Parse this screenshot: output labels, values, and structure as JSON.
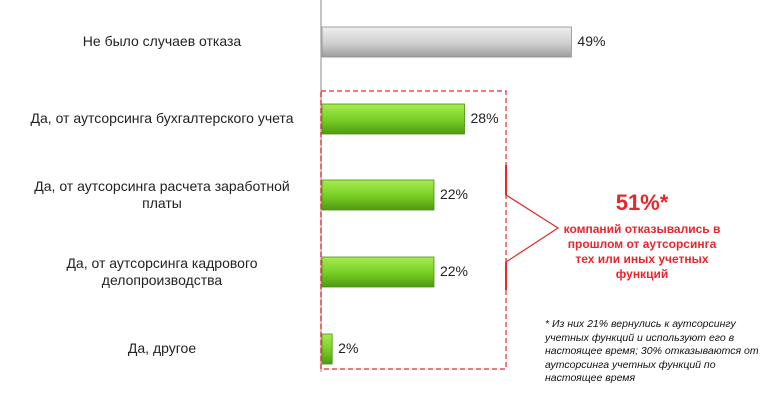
{
  "chart_data": {
    "type": "bar",
    "orientation": "horizontal",
    "categories": [
      "Не было случаев отказа",
      "Да, от аутсорсинга бухгалтерского  учета",
      "Да, от аутсорсинга расчета заработной платы",
      "Да, от аутсорсинга кадрового делопроизводства",
      "Да, другое"
    ],
    "values": [
      49,
      28,
      22,
      22,
      2
    ],
    "value_labels": [
      "49%",
      "28%",
      "22%",
      "22%",
      "2%"
    ],
    "bar_colors": [
      "#c8c8c8",
      "#7ad12a",
      "#7ad12a",
      "#7ad12a",
      "#7ad12a"
    ],
    "xlim": [
      0,
      100
    ],
    "grid": false
  },
  "callout": {
    "percent": "51%*",
    "text": "компаний отказывались в прошлом от аутсорсинга тех или иных учетных функций",
    "color": "#e8262b"
  },
  "footnote": "* Из них 21% вернулись к аутсорсингу учетных функций и используют его в настоящее время; 30% отказываются от аутсорсинга учетных функций по настоящее время"
}
